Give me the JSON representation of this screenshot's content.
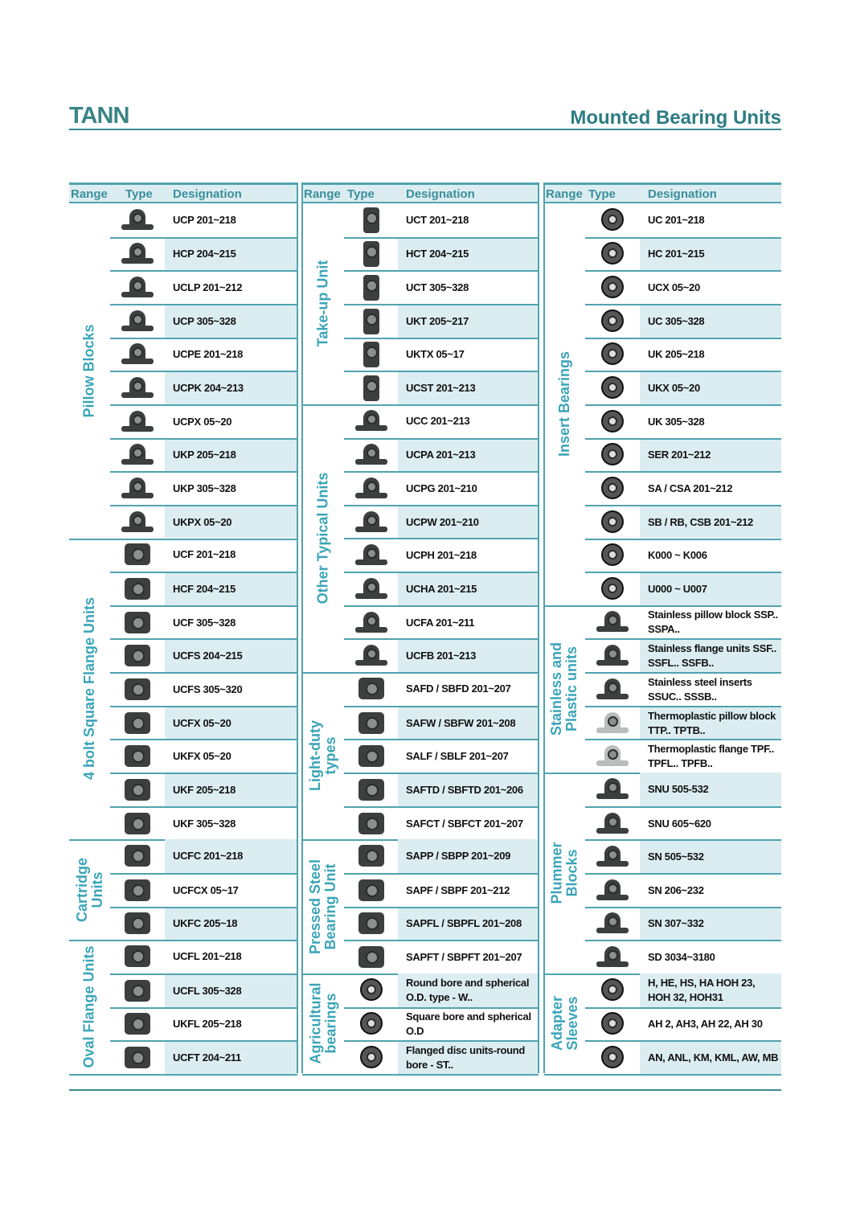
{
  "header": {
    "logo": "TANN",
    "title": "Mounted Bearing Units"
  },
  "columns_header": {
    "range": "Range",
    "type": "Type",
    "designation": "Designation"
  },
  "colors": {
    "accent": "#4fa3b0",
    "title": "#2e7c83",
    "range_label": "#3aa5b8",
    "row_alt": "#dcedf1"
  },
  "columns": [
    {
      "groups": [
        {
          "range": "Pillow Blocks",
          "icon": "pillow-block-icon",
          "items": [
            "UCP 201~218",
            "HCP 204~215",
            "UCLP 201~212",
            "UCP 305~328",
            "UCPE 201~218",
            "UCPK 204~213",
            "UCPX 05~20",
            "UKP 205~218",
            "UKP 305~328",
            "UKPX 05~20"
          ]
        },
        {
          "range": "4 bolt Square Flange Units",
          "icon": "square-flange-icon",
          "items": [
            "UCF 201~218",
            "HCF 204~215",
            "UCF 305~328",
            "UCFS 204~215",
            "UCFS 305~320",
            "UCFX 05~20",
            "UKFX 05~20",
            "UKF 205~218",
            "UKF 305~328"
          ]
        },
        {
          "range": "Cartridge\nUnits",
          "icon": "cartridge-unit-icon",
          "items": [
            "UCFC 201~218",
            "UCFCX 05~17",
            "UKFC 205~18"
          ]
        },
        {
          "range": "Oval Flange Units",
          "icon": "oval-flange-icon",
          "items": [
            "UCFL 201~218",
            "UCFL 305~328",
            "UKFL 205~218",
            "UCFT 204~211"
          ]
        }
      ]
    },
    {
      "groups": [
        {
          "range": "Take-up Unit",
          "icon": "take-up-unit-icon",
          "items": [
            "UCT 201~218",
            "HCT 204~215",
            "UCT 305~328",
            "UKT 205~217",
            "UKTX 05~17",
            "UCST 201~213"
          ]
        },
        {
          "range": "Other Typical Units",
          "icon": "typical-unit-icon",
          "items": [
            "UCC 201~213",
            "UCPA 201~213",
            "UCPG 201~210",
            "UCPW 201~210",
            "UCPH 201~218",
            "UCHA 201~215",
            "UCFA 201~211",
            "UCFB 201~213"
          ]
        },
        {
          "range": "Light-duty\ntypes",
          "icon": "light-duty-unit-icon",
          "items": [
            "SAFD / SBFD 201~207",
            "SAFW / SBFW 201~208",
            "SALF / SBLF 201~207",
            "SAFTD / SBFTD 201~206",
            "SAFCT / SBFCT 201~207"
          ]
        },
        {
          "range": "Pressed Steel\nBearing Unit",
          "icon": "pressed-steel-unit-icon",
          "items": [
            "SAPP / SBPP 201~209",
            "SAPF / SBPF 201~212",
            "SAPFL / SBPFL 201~208",
            "SAPFT / SBPFT 201~207"
          ]
        },
        {
          "range": "Agricultural\nbearings",
          "icon": "agricultural-bearing-icon",
          "items": [
            "Round bore and spherical O.D. type - W..",
            "Square bore and spherical O.D",
            "Flanged disc units-round bore - ST.."
          ]
        }
      ]
    },
    {
      "groups": [
        {
          "range": "Insert Bearings",
          "icon": "insert-bearing-icon",
          "items": [
            "UC 201~218",
            "HC 201~215",
            "UCX 05~20",
            "UC 305~328",
            "UK 205~218",
            "UKX 05~20",
            "UK 305~328",
            "SER 201~212",
            "SA / CSA 201~212",
            "SB / RB, CSB 201~212",
            "K000 ~ K006",
            "U000 ~ U007"
          ]
        },
        {
          "range": "Stainless and\nPlastic units",
          "icon": "stainless-unit-icon",
          "items": [
            "Stainless pillow block SSP.. SSPA..",
            "Stainless flange units SSF.. SSFL.. SSFB..",
            "Stainless steel inserts SSUC.. SSSB..",
            "Thermoplastic pillow block TTP.. TPTB..",
            "Thermoplastic flange TPF.. TPFL.. TPFB.."
          ]
        },
        {
          "range": "Plummer\nBlocks",
          "icon": "plummer-block-icon",
          "items": [
            "SNU 505-532",
            "SNU 605~620",
            "SN 505~532",
            "SN 206~232",
            "SN 307~332",
            "SD 3034~3180"
          ]
        },
        {
          "range": "Adapter\nSleeves",
          "icon": "adapter-sleeve-icon",
          "items": [
            "H, HE, HS, HA HOH 23, HOH 32, HOH31",
            "AH 2, AH3, AH 22, AH 30",
            "AN, ANL, KM, KML, AW, MB"
          ]
        }
      ]
    }
  ]
}
